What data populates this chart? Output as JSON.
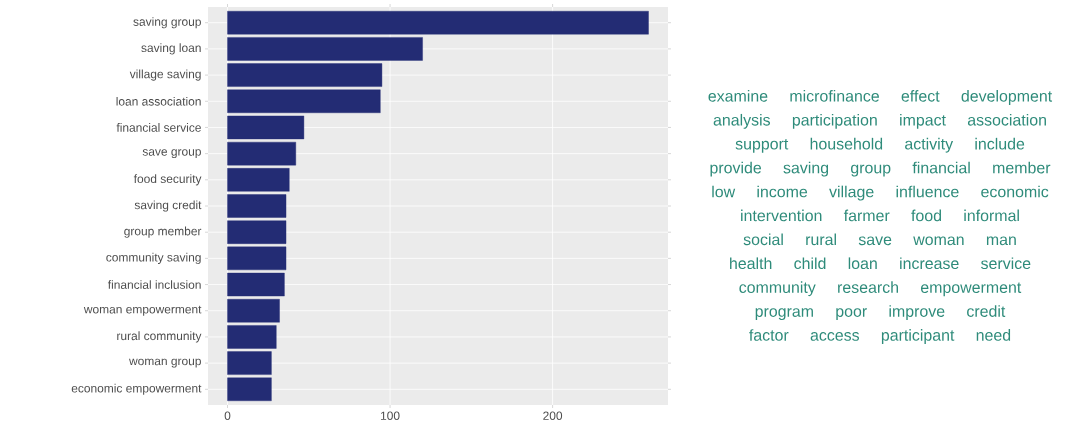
{
  "chart_data": [
    {
      "type": "bar",
      "orientation": "horizontal",
      "categories": [
        "saving group",
        "saving loan",
        "village saving",
        "loan association",
        "financial service",
        "save group",
        "food security",
        "saving credit",
        "group member",
        "community saving",
        "financial inclusion",
        "woman empowerment",
        "rural community",
        "woman group",
        "economic empowerment"
      ],
      "values": [
        259,
        120,
        95,
        94,
        47,
        42,
        38,
        36,
        36,
        36,
        35,
        32,
        30,
        27,
        27
      ],
      "color": "#232c74",
      "xlim": [
        -12,
        271
      ],
      "xticks": [
        0,
        100,
        200
      ],
      "grid": true
    },
    {
      "type": "other",
      "annotations": [
        "examine",
        "microfinance",
        "effect",
        "development",
        "analysis",
        "participation",
        "impact",
        "association",
        "support",
        "household",
        "activity",
        "include",
        "provide",
        "saving",
        "group",
        "financial",
        "member",
        "low",
        "income",
        "village",
        "influence",
        "economic",
        "intervention",
        "farmer",
        "food",
        "informal",
        "social",
        "rural",
        "save",
        "woman",
        "man",
        "health",
        "child",
        "loan",
        "increase",
        "service",
        "community",
        "research",
        "empowerment",
        "program",
        "poor",
        "improve",
        "credit",
        "factor",
        "access",
        "participant",
        "need"
      ]
    }
  ]
}
